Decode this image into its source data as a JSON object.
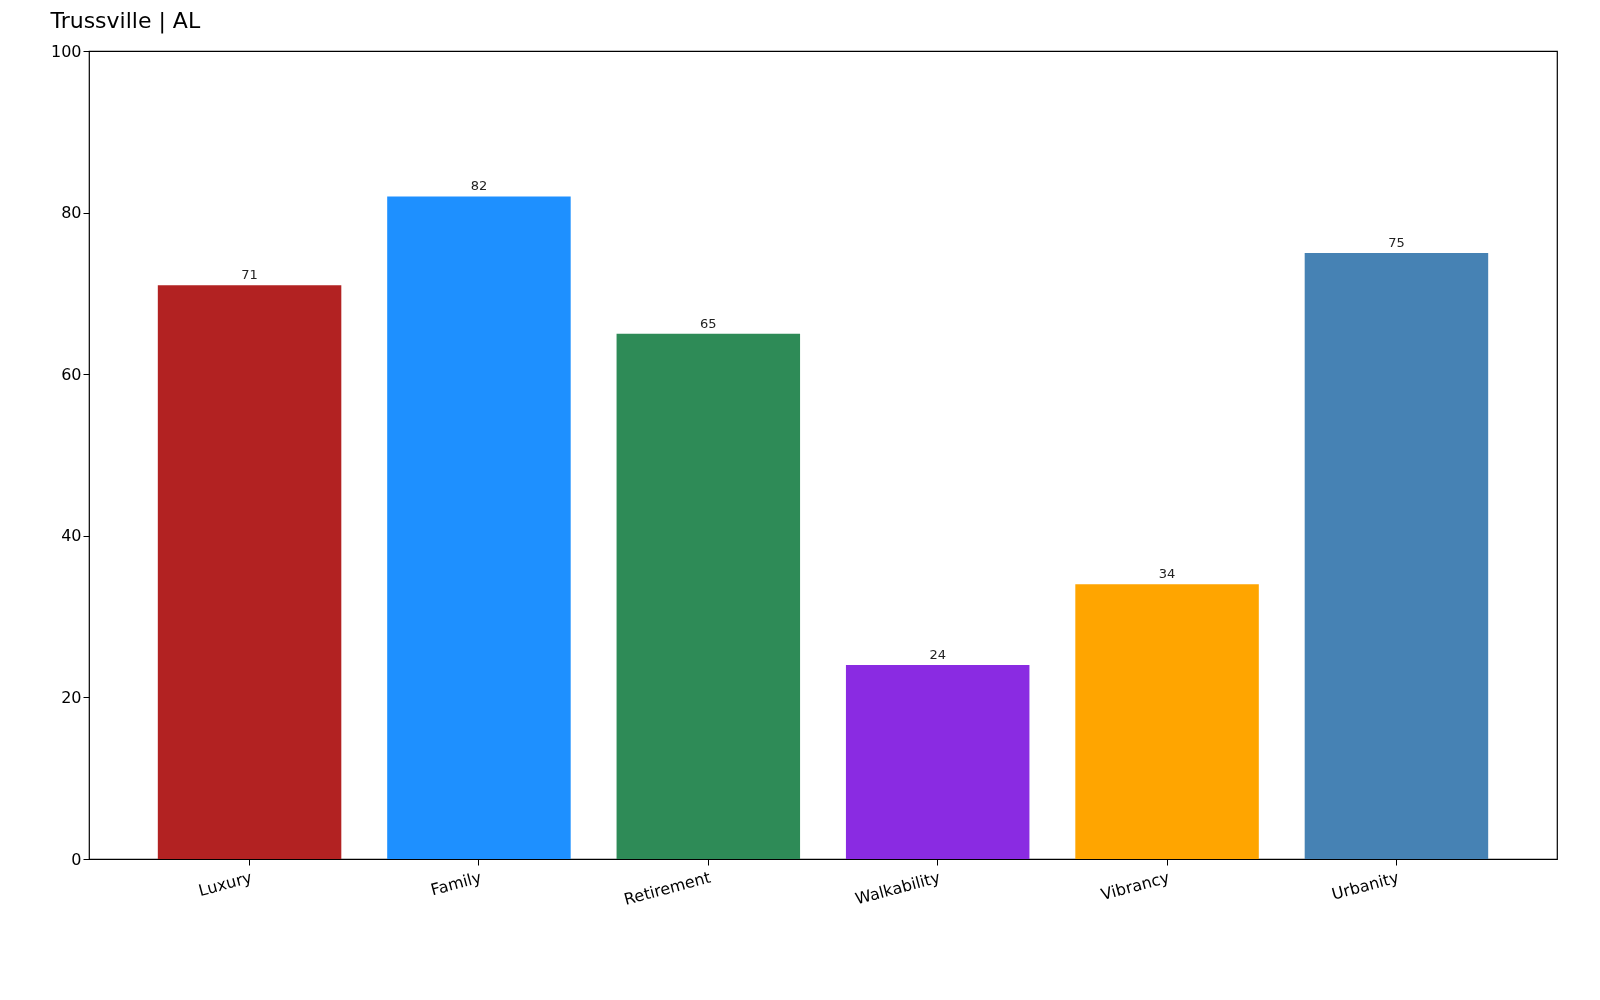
{
  "chart_data": {
    "type": "bar",
    "title": "Trussville | AL",
    "categories": [
      "Luxury",
      "Family",
      "Retirement",
      "Walkability",
      "Vibrancy",
      "Urbanity"
    ],
    "values": [
      71,
      82,
      65,
      24,
      34,
      75
    ],
    "colors": [
      "#b22222",
      "#1e90ff",
      "#2e8b57",
      "#8a2be2",
      "#ffa500",
      "#4682b4"
    ],
    "ylim": [
      0,
      100
    ],
    "yticks": [
      0,
      20,
      40,
      60,
      80,
      100
    ],
    "data_labels": true
  }
}
